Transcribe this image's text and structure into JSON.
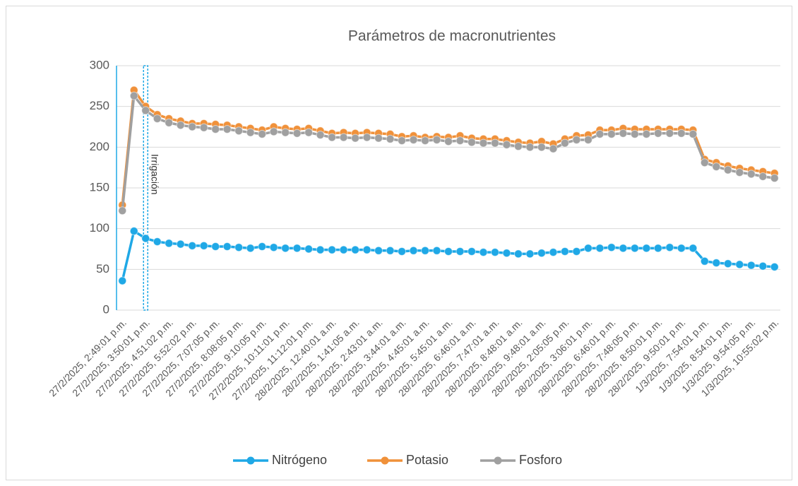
{
  "chart_data": {
    "type": "line",
    "title": "Parámetros de macronutrientes",
    "categories": [
      "27/2/2025, 2:49:01 p.m.",
      null,
      "27/2/2025, 3:50:01 p.m.",
      null,
      "27/2/2025, 4:51:02 p.m.",
      null,
      "27/2/2025, 5:52:02 p.m.",
      null,
      "27/2/2025, 7:07:05 p.m.",
      null,
      "27/2/2025, 8:08:05 p.m.",
      null,
      "27/2/2025, 9:10:05 p.m.",
      null,
      "27/2/2025, 10:11:01 p.m.",
      null,
      "27/2/2025, 11:12:01 p.m.",
      null,
      "28/2/2025, 12:40:01 a.m.",
      null,
      "28/2/2025, 1:41:05 a.m.",
      null,
      "28/2/2025, 2:43:01 a.m.",
      null,
      "28/2/2025, 3:44:01 a.m.",
      null,
      "28/2/2025, 4:45:01 a.m.",
      null,
      "28/2/2025, 5:45:01 a.m.",
      null,
      "28/2/2025, 6:46:01 a.m.",
      null,
      "28/2/2025, 7:47:01 a.m.",
      null,
      "28/2/2025, 8:48:01 a.m.",
      null,
      "28/2/2025, 9:48:01 a.m.",
      null,
      "28/2/2025, 2:05:05 p.m.",
      null,
      "28/2/2025, 3:06:01 p.m.",
      null,
      "28/2/2025, 6:46:01 p.m.",
      null,
      "28/2/2025, 7:48:05 p.m.",
      null,
      "28/2/2025, 8:50:01 p.m.",
      null,
      "28/2/2025, 9:50:01 p.m.",
      null,
      "1/3/2025, 7:54:01 p.m.",
      null,
      "1/3/2025, 8:54:01 p.m.",
      null,
      "1/3/2025, 9:54:05 p.m.",
      null,
      "1/3/2025, 10:55:02 p.m."
    ],
    "series": [
      {
        "name": "Nitrógeno",
        "color": "#1fa8e6",
        "values": [
          36,
          97,
          88,
          84,
          82,
          81,
          79,
          79,
          78,
          78,
          77,
          76,
          78,
          77,
          76,
          76,
          75,
          74,
          74,
          74,
          74,
          74,
          73,
          73,
          72,
          73,
          73,
          73,
          72,
          72,
          72,
          71,
          71,
          70,
          69,
          69,
          70,
          71,
          72,
          72,
          76,
          76,
          77,
          76,
          76,
          76,
          76,
          77,
          76,
          76,
          60,
          58,
          57,
          56,
          55,
          54,
          53
        ]
      },
      {
        "name": "Potasio",
        "color": "#f0913a",
        "values": [
          129,
          270,
          250,
          240,
          235,
          232,
          229,
          229,
          228,
          227,
          225,
          223,
          221,
          225,
          223,
          222,
          223,
          220,
          217,
          218,
          217,
          218,
          217,
          216,
          213,
          214,
          212,
          213,
          212,
          214,
          211,
          210,
          210,
          208,
          206,
          205,
          207,
          204,
          210,
          214,
          215,
          221,
          221,
          223,
          222,
          222,
          222,
          222,
          222,
          221,
          185,
          181,
          177,
          174,
          172,
          170,
          168
        ]
      },
      {
        "name": "Fosforo",
        "color": "#a0a0a0",
        "values": [
          122,
          263,
          245,
          235,
          230,
          227,
          225,
          224,
          222,
          222,
          220,
          218,
          216,
          219,
          218,
          217,
          218,
          215,
          212,
          212,
          211,
          212,
          211,
          210,
          208,
          209,
          208,
          209,
          207,
          208,
          206,
          205,
          205,
          203,
          201,
          200,
          200,
          198,
          205,
          209,
          209,
          216,
          216,
          217,
          216,
          216,
          217,
          217,
          217,
          216,
          181,
          176,
          172,
          169,
          167,
          164,
          162
        ]
      }
    ],
    "ylim": [
      0,
      300
    ],
    "yticks": [
      0,
      50,
      100,
      150,
      200,
      250,
      300
    ],
    "grid": true,
    "legend": "bottom",
    "annotation": {
      "text": "Irrigación",
      "x": "27/2/2025, 3:50:01 p.m."
    }
  }
}
